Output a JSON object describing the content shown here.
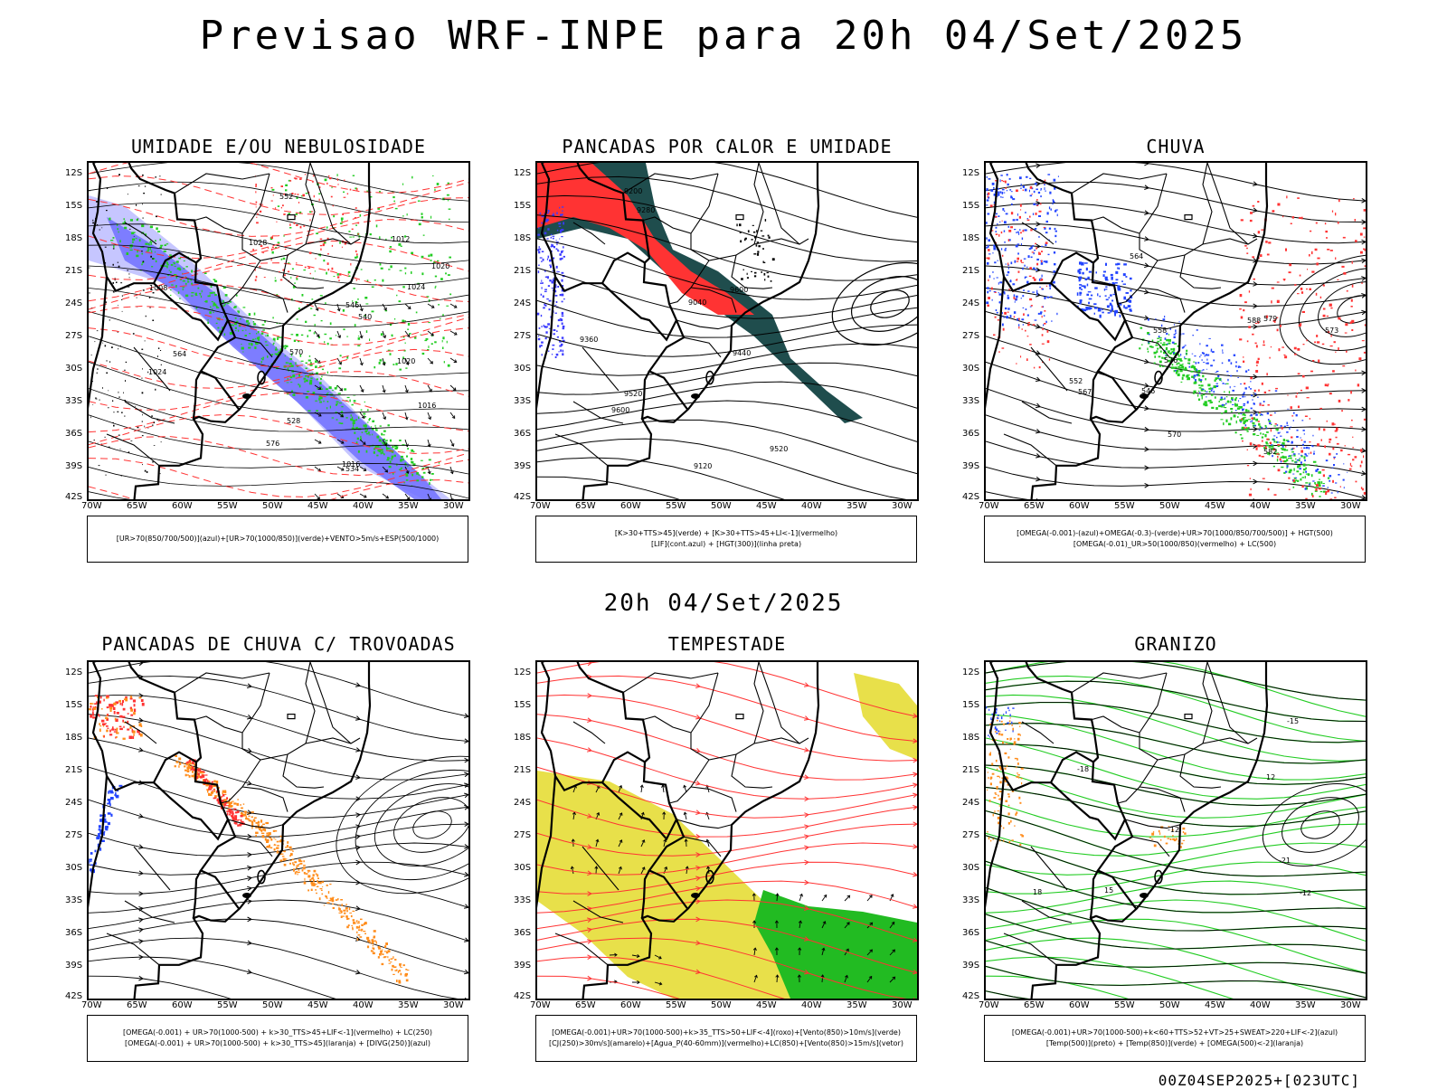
{
  "header": {
    "title": "Previsao WRF-INPE  para 20h 04/Set/2025",
    "mid_title": "20h 04/Set/2025",
    "footer": "00Z04SEP2025+[023UTC]"
  },
  "axes": {
    "lat_labels": [
      "12S",
      "15S",
      "18S",
      "21S",
      "24S",
      "27S",
      "30S",
      "33S",
      "36S",
      "39S",
      "42S"
    ],
    "lon_labels": [
      "70W",
      "65W",
      "60W",
      "55W",
      "50W",
      "45W",
      "40W",
      "35W",
      "30W"
    ]
  },
  "panels": [
    {
      "id": "umidade",
      "title": "UMIDADE E/OU NEBULOSIDADE",
      "legend_lines": [
        "[UR>70(850/700/500)](azul)+[UR>70(1000/850)](verde)+VENTO>5m/s+ESP(500/1000)"
      ],
      "contour_labels": [
        "1016",
        "1020",
        "1012",
        "1024",
        "1028",
        "1016",
        "1020",
        "564",
        "570",
        "576",
        "552",
        "546",
        "540",
        "534",
        "528",
        "1008",
        "1024"
      ]
    },
    {
      "id": "pancadas-calor",
      "title": "PANCADAS POR CALOR E UMIDADE",
      "legend_lines": [
        "[K>30+TTS>45](verde) + [K>30+TTS>45+LI<-1](vermelho)",
        "[LIF](cont.azul) + [HGT(300)](linha preta)"
      ],
      "contour_labels": [
        "9600",
        "9520",
        "9440",
        "9360",
        "9280",
        "9200",
        "9120",
        "9040",
        "9520",
        "9600"
      ]
    },
    {
      "id": "chuva",
      "title": "CHUVA",
      "legend_lines": [
        "[OMEGA(-0.001)-(azul)+OMEGA(-0.3)-(verde)+UR>70(1000/850/700/500)] + HGT(500)",
        "[OMEGA(-0.01)_UR>50(1000/850)(vermelho) + LC(500)"
      ],
      "contour_labels": [
        "588",
        "582",
        "579",
        "576",
        "570",
        "564",
        "558",
        "552",
        "546",
        "573",
        "567"
      ]
    },
    {
      "id": "trovoadas",
      "title": "PANCADAS DE CHUVA C/ TROVOADAS",
      "legend_lines": [
        "[OMEGA(-0.001) + UR>70(1000-500) + k>30_TTS>45+LIF<-1](vermelho) + LC(250)",
        "[OMEGA(-0.001) + UR>70(1000-500) + k>30_TTS>45](laranja) + [DIVG(250)](azul)"
      ],
      "contour_labels": []
    },
    {
      "id": "tempestade",
      "title": "TEMPESTADE",
      "legend_lines": [
        "[OMEGA(-0.001)+UR>70(1000-500)+k>35_TTS>50+LIF<-4](roxo)+[Vento(850)>10m/s](verde)",
        "[CJ(250)>30m/s](amarelo)+[Agua_P(40-60mm)](vermelho)+LC(850)+[Vento(850)>15m/s](vetor)"
      ],
      "contour_labels": []
    },
    {
      "id": "granizo",
      "title": "GRANIZO",
      "legend_lines": [
        "[OMEGA(-0.001)+UR>70(1000-500)+k<60+TTS>52+VT>25+SWEAT>220+LIF<-2](azul)",
        "[Temp(500)](preto) + [Temp(850)](verde) + [OMEGA(500)<-2](laranja)"
      ],
      "contour_labels": [
        "-12",
        "-15",
        "-18",
        "-21",
        "12",
        "15",
        "18",
        "-12"
      ]
    }
  ],
  "colors": {
    "humidity_blue": "#7070ff",
    "humidity_light": "#b8b8ff",
    "humidity_green": "#22cc22",
    "rain_red": "#ff3333",
    "dark_teal": "#1f4d4d",
    "orange": "#ff8c1a",
    "yellow": "#e8e04a",
    "wind_green": "#22bb22",
    "contour_red": "#ff3333"
  }
}
